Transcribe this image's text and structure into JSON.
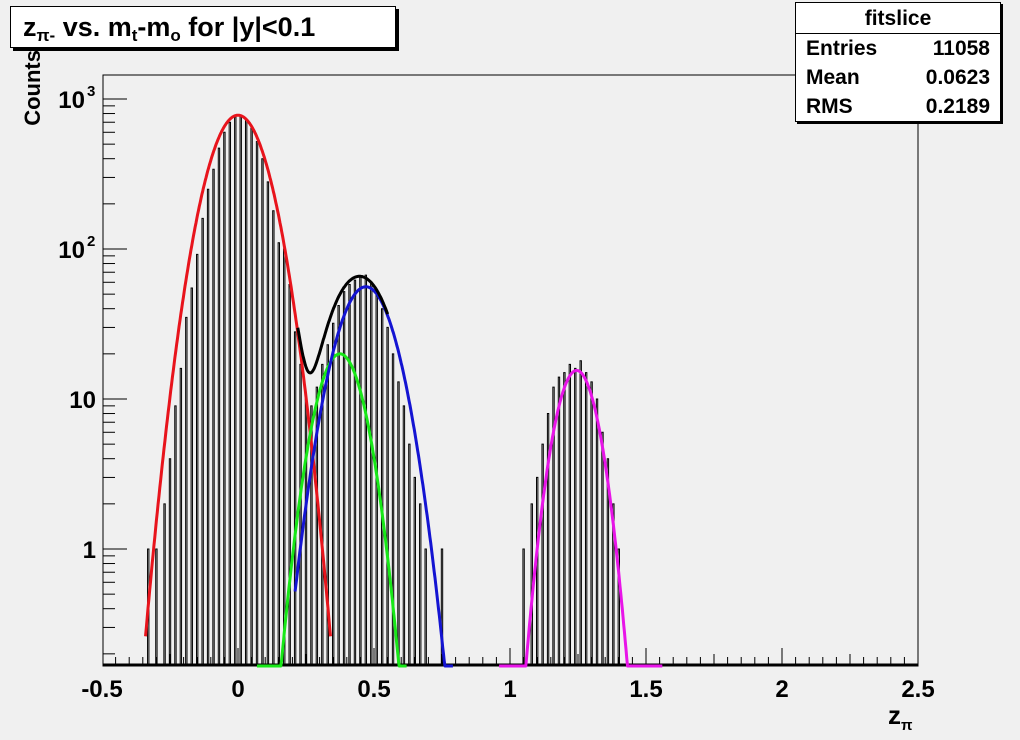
{
  "title": {
    "prefix": "z",
    "prefix_sub": "π-",
    "middle": " vs. m",
    "middle_sub": "t",
    "suffix": "-m",
    "suffix_sub": "o",
    "tail": " for |y|<0.1"
  },
  "stats": {
    "header": "fitslice",
    "rows": [
      {
        "label": "Entries",
        "value": "11058"
      },
      {
        "label": "Mean",
        "value": "0.0623"
      },
      {
        "label": "RMS",
        "value": "0.2189"
      }
    ]
  },
  "colors": {
    "background": "#f0f0f0",
    "histogram": "#000000",
    "fit_total": "#000000",
    "peak_pion": "#e8141c",
    "peak_kaon": "#18e818",
    "peak_kaon2": "#1414d2",
    "peak_proton": "#e814e8"
  },
  "chart_data": {
    "type": "line",
    "title": "zπ- vs. mt-mo for |y|<0.1",
    "xlabel": "zπ",
    "ylabel": "Counts",
    "xlim": [
      -0.5,
      2.5
    ],
    "ylim": [
      0.15,
      1500
    ],
    "yscale": "log",
    "grid": false,
    "legend": "none",
    "xticks": [
      "-0.5",
      "0",
      "0.5",
      "1",
      "1.5",
      "2",
      "2.5"
    ],
    "yticks": [
      {
        "value": 1,
        "label": "1"
      },
      {
        "value": 10,
        "label": "10"
      },
      {
        "value": 100,
        "label": "10",
        "exp": "2"
      },
      {
        "value": 1000,
        "label": "10",
        "exp": "3"
      }
    ],
    "series": [
      {
        "key": "pion",
        "color": "#e8141c",
        "amplitude": 780,
        "mean": 0.0,
        "sigma": 0.085,
        "xrange": [
          -0.34,
          0.34
        ]
      },
      {
        "key": "kaon_a",
        "color": "#18e818",
        "amplitude": 20,
        "mean": 0.375,
        "sigma": 0.07,
        "xrange": [
          0.07,
          0.62
        ]
      },
      {
        "key": "kaon_b",
        "color": "#1414d2",
        "amplitude": 56,
        "mean": 0.47,
        "sigma": 0.085,
        "xrange": [
          0.21,
          0.79
        ]
      },
      {
        "key": "proton",
        "color": "#e814e8",
        "amplitude": 15.5,
        "mean": 1.245,
        "sigma": 0.062,
        "xrange": [
          0.96,
          1.56
        ]
      }
    ],
    "total_fit": {
      "key": "total",
      "color": "#000000",
      "xrange": [
        0.22,
        0.55
      ],
      "components": [
        "pion",
        "kaon_a",
        "kaon_b"
      ]
    },
    "histogram": {
      "bin_width": 0.005,
      "bins": [
        {
          "x": -0.33,
          "y": 1
        },
        {
          "x": -0.3,
          "y": 1
        },
        {
          "x": -0.27,
          "y": 2
        },
        {
          "x": -0.25,
          "y": 4
        },
        {
          "x": -0.23,
          "y": 9
        },
        {
          "x": -0.21,
          "y": 16
        },
        {
          "x": -0.19,
          "y": 35
        },
        {
          "x": -0.17,
          "y": 55
        },
        {
          "x": -0.15,
          "y": 92
        },
        {
          "x": -0.13,
          "y": 160
        },
        {
          "x": -0.11,
          "y": 250
        },
        {
          "x": -0.09,
          "y": 340
        },
        {
          "x": -0.07,
          "y": 470
        },
        {
          "x": -0.05,
          "y": 600
        },
        {
          "x": -0.03,
          "y": 700
        },
        {
          "x": -0.01,
          "y": 760
        },
        {
          "x": 0.01,
          "y": 770
        },
        {
          "x": 0.03,
          "y": 720
        },
        {
          "x": 0.05,
          "y": 640
        },
        {
          "x": 0.07,
          "y": 520
        },
        {
          "x": 0.09,
          "y": 400
        },
        {
          "x": 0.11,
          "y": 280
        },
        {
          "x": 0.13,
          "y": 180
        },
        {
          "x": 0.15,
          "y": 110
        },
        {
          "x": 0.17,
          "y": 100
        },
        {
          "x": 0.19,
          "y": 58
        },
        {
          "x": 0.21,
          "y": 28
        },
        {
          "x": 0.23,
          "y": 17
        },
        {
          "x": 0.25,
          "y": 10
        },
        {
          "x": 0.27,
          "y": 9
        },
        {
          "x": 0.29,
          "y": 12
        },
        {
          "x": 0.31,
          "y": 17
        },
        {
          "x": 0.33,
          "y": 23
        },
        {
          "x": 0.35,
          "y": 32
        },
        {
          "x": 0.37,
          "y": 42
        },
        {
          "x": 0.39,
          "y": 52
        },
        {
          "x": 0.41,
          "y": 58
        },
        {
          "x": 0.43,
          "y": 62
        },
        {
          "x": 0.45,
          "y": 66
        },
        {
          "x": 0.47,
          "y": 67
        },
        {
          "x": 0.49,
          "y": 60
        },
        {
          "x": 0.51,
          "y": 50
        },
        {
          "x": 0.53,
          "y": 40
        },
        {
          "x": 0.55,
          "y": 30
        },
        {
          "x": 0.57,
          "y": 20
        },
        {
          "x": 0.59,
          "y": 13
        },
        {
          "x": 0.61,
          "y": 9
        },
        {
          "x": 0.63,
          "y": 5
        },
        {
          "x": 0.65,
          "y": 3
        },
        {
          "x": 0.67,
          "y": 2
        },
        {
          "x": 0.69,
          "y": 1
        },
        {
          "x": 0.75,
          "y": 1
        },
        {
          "x": 1.05,
          "y": 1
        },
        {
          "x": 1.08,
          "y": 2
        },
        {
          "x": 1.1,
          "y": 3
        },
        {
          "x": 1.12,
          "y": 5
        },
        {
          "x": 1.14,
          "y": 8
        },
        {
          "x": 1.16,
          "y": 12
        },
        {
          "x": 1.18,
          "y": 14
        },
        {
          "x": 1.2,
          "y": 15
        },
        {
          "x": 1.22,
          "y": 17
        },
        {
          "x": 1.24,
          "y": 16
        },
        {
          "x": 1.26,
          "y": 18
        },
        {
          "x": 1.28,
          "y": 15
        },
        {
          "x": 1.3,
          "y": 13
        },
        {
          "x": 1.32,
          "y": 10
        },
        {
          "x": 1.34,
          "y": 6
        },
        {
          "x": 1.36,
          "y": 4
        },
        {
          "x": 1.38,
          "y": 2
        },
        {
          "x": 1.4,
          "y": 1
        }
      ]
    }
  }
}
